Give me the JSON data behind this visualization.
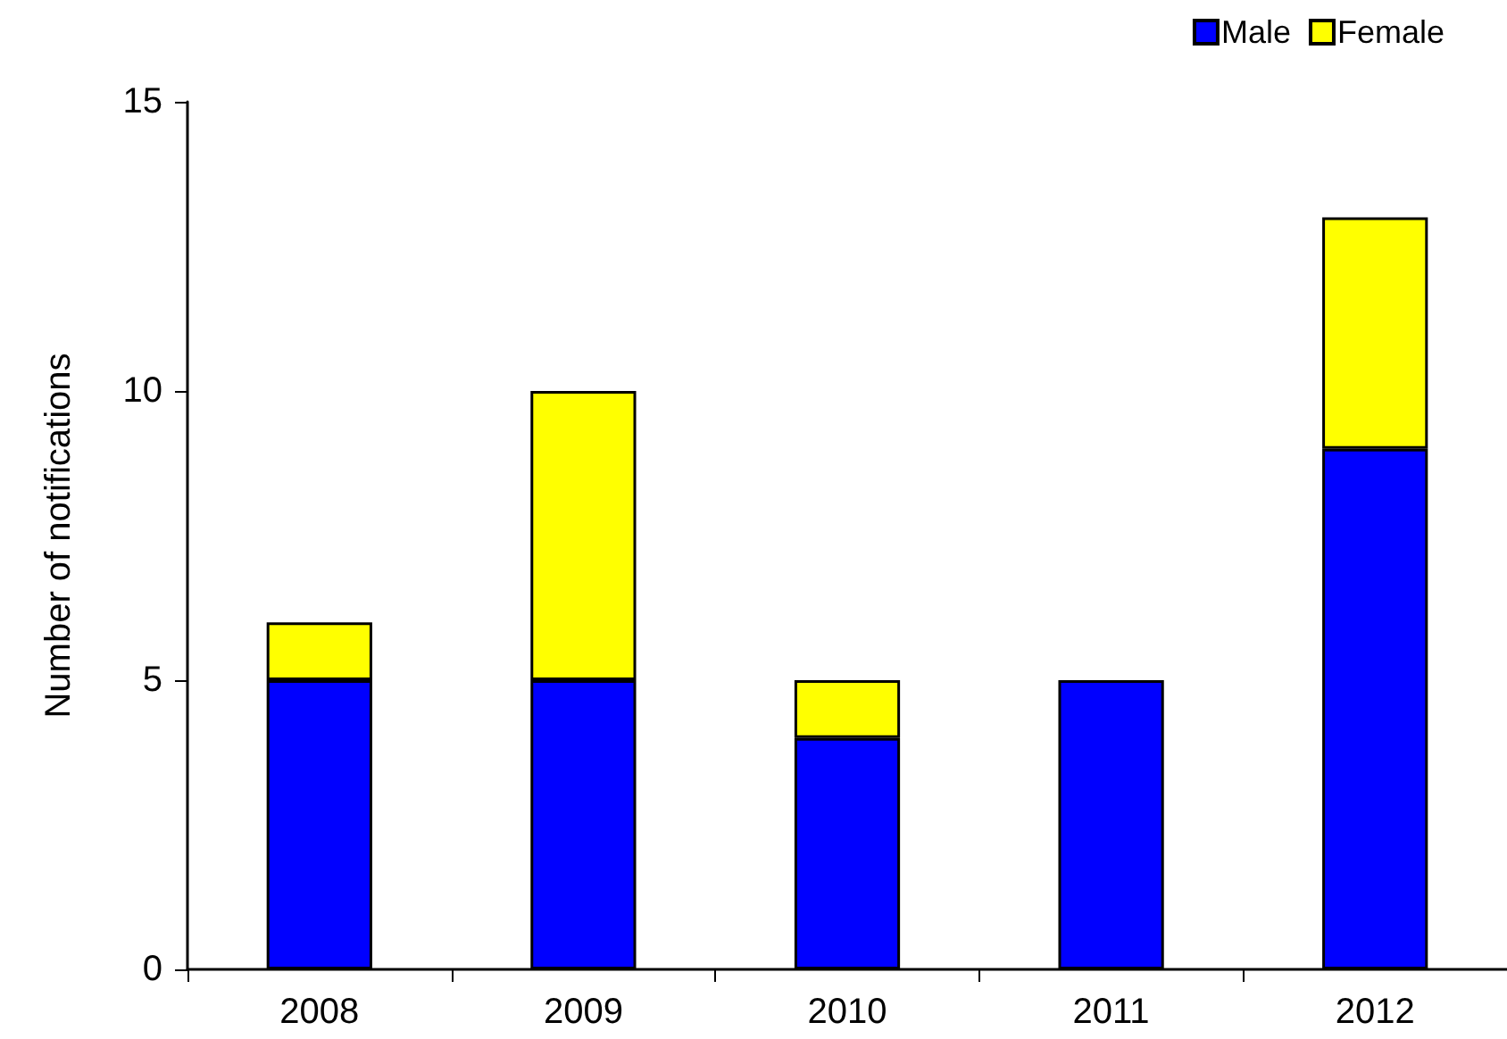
{
  "chart_data": {
    "type": "bar",
    "ylabel": "Number of notifications",
    "categories": [
      "2008",
      "2009",
      "2010",
      "2011",
      "2012"
    ],
    "series": [
      {
        "name": "Male",
        "color": "#0000ff",
        "values": [
          5,
          5,
          4,
          5,
          9
        ]
      },
      {
        "name": "Female",
        "color": "#ffff00",
        "values": [
          1,
          5,
          1,
          null,
          4
        ]
      }
    ],
    "stacked": true,
    "ylim": [
      0,
      15
    ],
    "yticks": [
      0,
      5,
      10,
      15
    ],
    "grid": false,
    "legend": "top right"
  }
}
